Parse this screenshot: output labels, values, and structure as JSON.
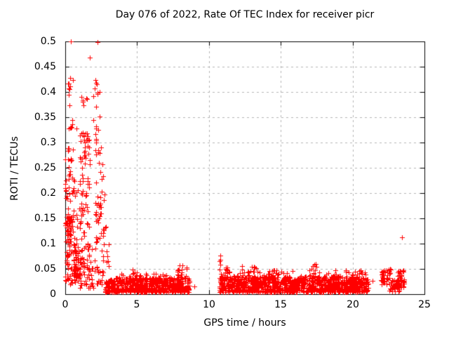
{
  "chart_data": {
    "type": "scatter",
    "title": "Day 076 of 2022, Rate Of TEC Index for receiver picr",
    "xlabel": "GPS time / hours",
    "ylabel": "ROTI / TECUs",
    "xlim": [
      0,
      25
    ],
    "ylim": [
      0,
      0.5
    ],
    "xtick_values": [
      0,
      5,
      10,
      15,
      20,
      25
    ],
    "xtick_labels": [
      "0",
      "5",
      "10",
      "15",
      "20",
      "25"
    ],
    "ytick_values": [
      0,
      0.05,
      0.1,
      0.15,
      0.2,
      0.25,
      0.3,
      0.35,
      0.4,
      0.45,
      0.5
    ],
    "ytick_labels": [
      "0",
      "0.05",
      "0.1",
      "0.15",
      "0.2",
      "0.25",
      "0.3",
      "0.35",
      "0.4",
      "0.45",
      "0.5"
    ],
    "grid": {
      "dashed": true,
      "color": "#b4b4b4",
      "legend": "none"
    },
    "marker": {
      "shape": "plus",
      "color": "#ff0000",
      "size": 7
    },
    "series_name": "ROTI",
    "points_format": "[gps_hours, roti_tecus] — individually visible markers",
    "points": [
      [
        0.38,
        0.5
      ],
      [
        2.26,
        0.499
      ],
      [
        1.7,
        0.468
      ],
      [
        2.16,
        0.418
      ],
      [
        0.3,
        0.374
      ],
      [
        1.95,
        0.344
      ],
      [
        0.78,
        0.328
      ],
      [
        2.62,
        0.075
      ],
      [
        2.9,
        0.064
      ],
      [
        3.05,
        0.055
      ],
      [
        8.98,
        0.015
      ],
      [
        21.4,
        0.026
      ],
      [
        23.42,
        0.113
      ]
    ],
    "clusters_format": "[x_min_h, x_max_h, roti_min, roti_max, n_points, low_bias_skew] — dense marker regions read from the plot",
    "clusters": [
      [
        0.0,
        0.12,
        0.02,
        0.28,
        16,
        1
      ],
      [
        0.1,
        0.55,
        0.39,
        0.43,
        8,
        1
      ],
      [
        0.12,
        0.5,
        0.315,
        0.35,
        6,
        1
      ],
      [
        0.15,
        0.6,
        0.255,
        0.295,
        10,
        1
      ],
      [
        0.12,
        0.6,
        0.23,
        0.255,
        6,
        1
      ],
      [
        0.08,
        0.7,
        0.16,
        0.23,
        16,
        1
      ],
      [
        0.05,
        0.55,
        0.112,
        0.16,
        40,
        1
      ],
      [
        0.1,
        0.8,
        0.02,
        0.112,
        60,
        1.2
      ],
      [
        0.55,
        1.05,
        0.03,
        0.1,
        22,
        1.1
      ],
      [
        0.75,
        1.05,
        0.12,
        0.23,
        9,
        1
      ],
      [
        1.0,
        1.75,
        0.245,
        0.322,
        32,
        1
      ],
      [
        1.1,
        1.62,
        0.355,
        0.4,
        6,
        1
      ],
      [
        1.02,
        1.72,
        0.09,
        0.245,
        42,
        1
      ],
      [
        0.85,
        1.75,
        0.012,
        0.09,
        55,
        1.2
      ],
      [
        1.9,
        2.5,
        0.35,
        0.425,
        9,
        1
      ],
      [
        2.0,
        2.42,
        0.295,
        0.335,
        7,
        1
      ],
      [
        2.1,
        2.6,
        0.24,
        0.295,
        9,
        1
      ],
      [
        2.05,
        2.72,
        0.1,
        0.24,
        34,
        1
      ],
      [
        1.75,
        2.65,
        0.012,
        0.1,
        30,
        1.3
      ],
      [
        2.55,
        3.1,
        0.04,
        0.135,
        12,
        1.2
      ],
      [
        2.75,
        8.65,
        0.004,
        0.032,
        620,
        1.3
      ],
      [
        3.0,
        8.6,
        0.028,
        0.042,
        40,
        1
      ],
      [
        7.75,
        8.5,
        0.035,
        0.058,
        14,
        1
      ],
      [
        4.4,
        5.3,
        0.035,
        0.05,
        8,
        1
      ],
      [
        10.7,
        10.85,
        0.012,
        0.078,
        13,
        1
      ],
      [
        10.75,
        21.1,
        0.004,
        0.035,
        1050,
        1.3
      ],
      [
        10.9,
        21.0,
        0.03,
        0.048,
        90,
        1
      ],
      [
        12.3,
        13.6,
        0.04,
        0.056,
        12,
        1
      ],
      [
        17.1,
        17.5,
        0.045,
        0.06,
        5,
        1
      ],
      [
        11.05,
        11.3,
        0.04,
        0.058,
        5,
        1
      ],
      [
        20.4,
        20.9,
        0.04,
        0.052,
        5,
        1
      ],
      [
        21.95,
        22.65,
        0.018,
        0.05,
        40,
        1
      ],
      [
        22.55,
        23.25,
        0.004,
        0.028,
        45,
        1
      ],
      [
        23.1,
        23.6,
        0.012,
        0.048,
        35,
        1
      ]
    ],
    "data_gaps_hours": [
      [
        8.7,
        10.7
      ],
      [
        21.1,
        21.95
      ]
    ]
  }
}
